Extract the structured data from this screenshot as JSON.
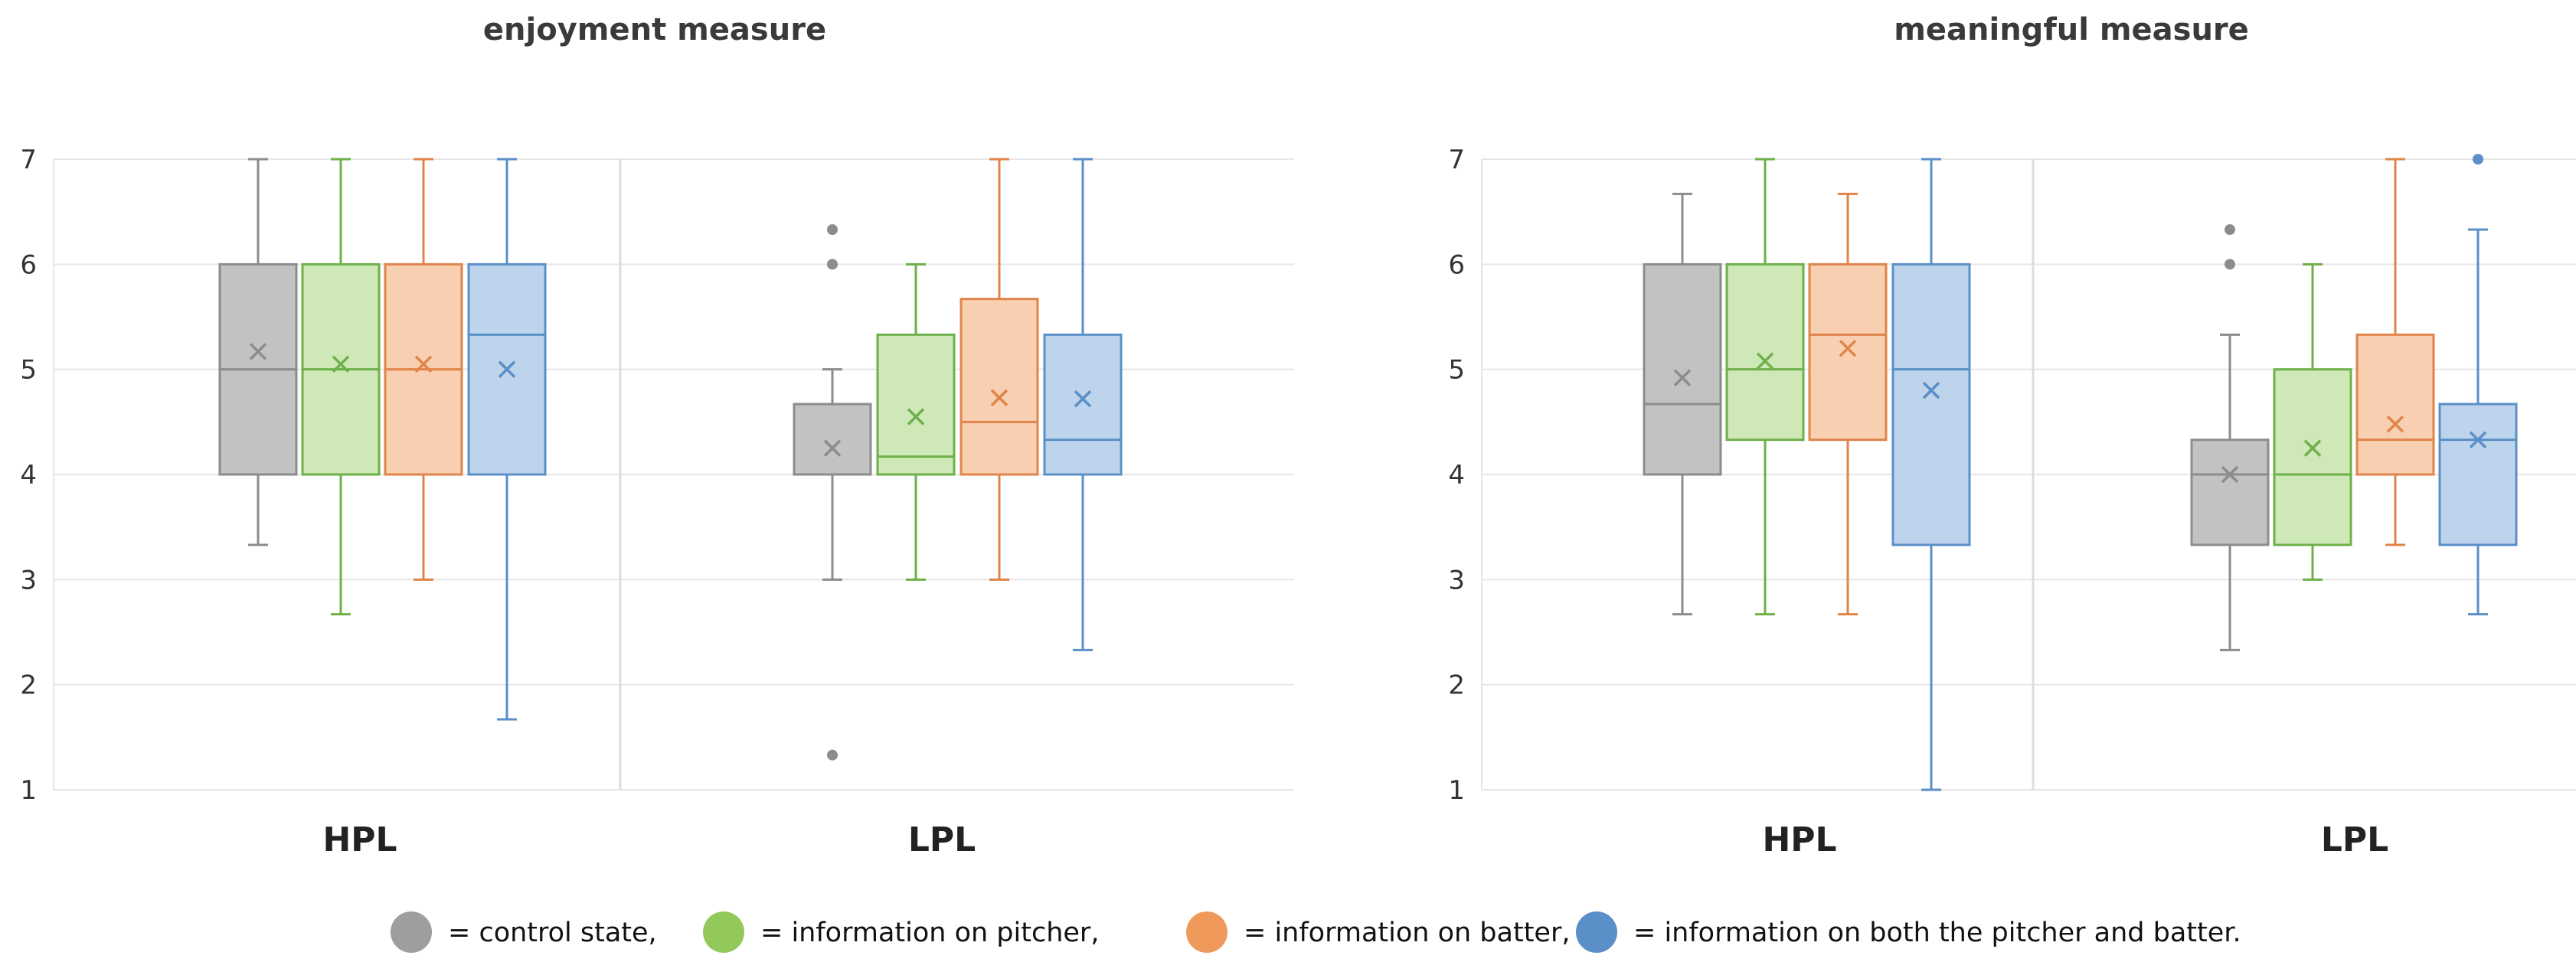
{
  "legend": [
    {
      "key": "control",
      "label": "= control state,",
      "color": "#9e9e9e"
    },
    {
      "key": "pitcher",
      "label": "= information on pitcher,",
      "color": "#92c95a"
    },
    {
      "key": "batter",
      "label": "= information on batter,",
      "color": "#ef9a5a"
    },
    {
      "key": "both",
      "label": "= information on both the pitcher and batter.",
      "color": "#5a8fc8"
    }
  ],
  "series_colors": {
    "control": {
      "fill": "#c2c2c2",
      "stroke": "#8c8c8c"
    },
    "pitcher": {
      "fill": "#cfe8b8",
      "stroke": "#6eb04a"
    },
    "batter": {
      "fill": "#f8cfb0",
      "stroke": "#e0844a"
    },
    "both": {
      "fill": "#bdd4ec",
      "stroke": "#5a8fc8"
    }
  },
  "chart_data": [
    {
      "type": "boxplot",
      "title": "enjoyment measure",
      "ylim": [
        1,
        7
      ],
      "yticks": [
        1,
        2,
        3,
        4,
        5,
        6,
        7
      ],
      "groups": [
        {
          "label": "HPL",
          "boxes": [
            {
              "series": "control",
              "min": 3.33,
              "q1": 4,
              "median": 5,
              "q3": 6,
              "max": 7,
              "mean": 5.17,
              "outliers": []
            },
            {
              "series": "pitcher",
              "min": 2.67,
              "q1": 4,
              "median": 5,
              "q3": 6,
              "max": 7,
              "mean": 5.05,
              "outliers": []
            },
            {
              "series": "batter",
              "min": 3,
              "q1": 4,
              "median": 5,
              "q3": 6,
              "max": 7,
              "mean": 5.05,
              "outliers": []
            },
            {
              "series": "both",
              "min": 1.67,
              "q1": 4,
              "median": 5.33,
              "q3": 6,
              "max": 7,
              "mean": 5,
              "outliers": []
            }
          ]
        },
        {
          "label": "LPL",
          "boxes": [
            {
              "series": "control",
              "min": 3,
              "q1": 4,
              "median": 4,
              "q3": 4.67,
              "max": 5,
              "mean": 4.25,
              "outliers": [
                6,
                6.33,
                1.33
              ]
            },
            {
              "series": "pitcher",
              "min": 3,
              "q1": 4,
              "median": 4.17,
              "q3": 5.33,
              "max": 6,
              "mean": 4.55,
              "outliers": []
            },
            {
              "series": "batter",
              "min": 3,
              "q1": 4,
              "median": 4.5,
              "q3": 5.67,
              "max": 7,
              "mean": 4.73,
              "outliers": []
            },
            {
              "series": "both",
              "min": 2.33,
              "q1": 4,
              "median": 4.33,
              "q3": 5.33,
              "max": 7,
              "mean": 4.72,
              "outliers": []
            }
          ]
        }
      ]
    },
    {
      "type": "boxplot",
      "title": "meaningful measure",
      "ylim": [
        1,
        7
      ],
      "yticks": [
        1,
        2,
        3,
        4,
        5,
        6,
        7
      ],
      "groups": [
        {
          "label": "HPL",
          "boxes": [
            {
              "series": "control",
              "min": 2.67,
              "q1": 4,
              "median": 4.67,
              "q3": 6,
              "max": 6.67,
              "mean": 4.92,
              "outliers": []
            },
            {
              "series": "pitcher",
              "min": 2.67,
              "q1": 4.33,
              "median": 5,
              "q3": 6,
              "max": 7,
              "mean": 5.08,
              "outliers": []
            },
            {
              "series": "batter",
              "min": 2.67,
              "q1": 4.33,
              "median": 5.33,
              "q3": 6,
              "max": 6.67,
              "mean": 5.2,
              "outliers": []
            },
            {
              "series": "both",
              "min": 1,
              "q1": 3.33,
              "median": 5,
              "q3": 6,
              "max": 7,
              "mean": 4.8,
              "outliers": []
            }
          ]
        },
        {
          "label": "LPL",
          "boxes": [
            {
              "series": "control",
              "min": 2.33,
              "q1": 3.33,
              "median": 4,
              "q3": 4.33,
              "max": 5.33,
              "mean": 4,
              "outliers": [
                6,
                6.33
              ]
            },
            {
              "series": "pitcher",
              "min": 3,
              "q1": 3.33,
              "median": 4,
              "q3": 5,
              "max": 6,
              "mean": 4.25,
              "outliers": []
            },
            {
              "series": "batter",
              "min": 3.33,
              "q1": 4,
              "median": 4.33,
              "q3": 5.33,
              "max": 7,
              "mean": 4.48,
              "outliers": []
            },
            {
              "series": "both",
              "min": 2.67,
              "q1": 3.33,
              "median": 4.33,
              "q3": 4.67,
              "max": 6.33,
              "mean": 4.33,
              "outliers": [
                7
              ]
            }
          ]
        }
      ]
    }
  ]
}
